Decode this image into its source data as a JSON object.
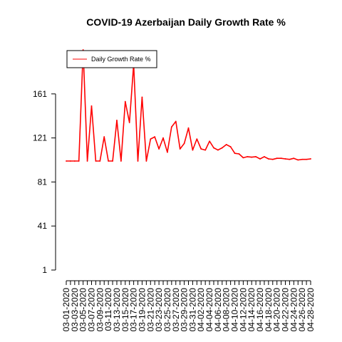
{
  "chart_data": {
    "type": "line",
    "title": "COVID-19 Azerbaijan Daily Growth Rate %",
    "xlabel": "",
    "ylabel": "",
    "ylim": [
      1,
      201
    ],
    "y_ticks": [
      1,
      41,
      81,
      121,
      161
    ],
    "grid": false,
    "legend_position": "top-left",
    "series": [
      {
        "name": "Daily Growth Rate %",
        "color": "#ff0000",
        "x": [
          "03-01-2020",
          "03-02-2020",
          "03-03-2020",
          "03-04-2020",
          "03-05-2020",
          "03-06-2020",
          "03-07-2020",
          "03-08-2020",
          "03-09-2020",
          "03-10-2020",
          "03-11-2020",
          "03-12-2020",
          "03-13-2020",
          "03-14-2020",
          "03-15-2020",
          "03-16-2020",
          "03-17-2020",
          "03-18-2020",
          "03-19-2020",
          "03-20-2020",
          "03-21-2020",
          "03-22-2020",
          "03-23-2020",
          "03-24-2020",
          "03-25-2020",
          "03-26-2020",
          "03-27-2020",
          "03-28-2020",
          "03-29-2020",
          "03-30-2020",
          "03-31-2020",
          "04-01-2020",
          "04-02-2020",
          "04-03-2020",
          "04-04-2020",
          "04-05-2020",
          "04-06-2020",
          "04-07-2020",
          "04-08-2020",
          "04-09-2020",
          "04-10-2020",
          "04-11-2020",
          "04-12-2020",
          "04-13-2020",
          "04-14-2020",
          "04-15-2020",
          "04-16-2020",
          "04-17-2020",
          "04-18-2020",
          "04-19-2020",
          "04-20-2020",
          "04-21-2020",
          "04-22-2020",
          "04-23-2020",
          "04-24-2020",
          "04-25-2020",
          "04-26-2020",
          "04-27-2020",
          "04-28-2020"
        ],
        "values": [
          100,
          100,
          100,
          100,
          201,
          100,
          150,
          100,
          100,
          122,
          100,
          100,
          137,
          100,
          154,
          135,
          188,
          100,
          158,
          100,
          120,
          122,
          111,
          121,
          108,
          131,
          136,
          111,
          116,
          130,
          110,
          120,
          111,
          110,
          118,
          112,
          110,
          112,
          115,
          113,
          107,
          106.5,
          103,
          104,
          103.5,
          104,
          102,
          104,
          102,
          101.5,
          102.5,
          102.5,
          102,
          101.5,
          102.5,
          101,
          101.5,
          101.5,
          102
        ]
      }
    ]
  }
}
